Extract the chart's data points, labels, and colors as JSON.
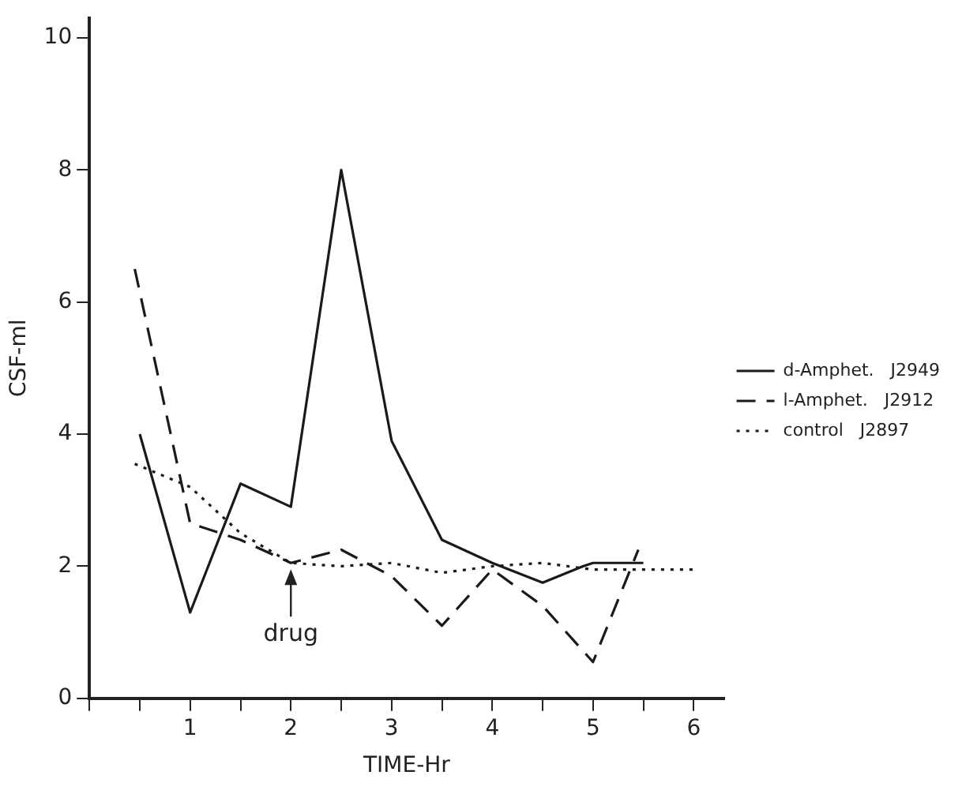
{
  "chart_data": {
    "type": "line",
    "xlabel": "TIME-Hr",
    "ylabel": "CSF-ml",
    "xlim": [
      0,
      6.3
    ],
    "xticks": [
      {
        "value": 0,
        "label": null
      },
      {
        "value": 0.5,
        "label": null
      },
      1,
      {
        "value": 1.5,
        "label": null
      },
      2,
      {
        "value": 2.5,
        "label": null
      },
      3,
      {
        "value": 3.5,
        "label": null
      },
      4,
      {
        "value": 4.5,
        "label": null
      },
      5,
      {
        "value": 5.5,
        "label": null
      },
      6
    ],
    "ylim": [
      0,
      10.3
    ],
    "yticks": [
      0,
      2,
      4,
      6,
      8,
      10
    ],
    "grid": false,
    "legend": "right",
    "marker": "none",
    "annotations": [
      {
        "text": "drug",
        "x": 2,
        "y": 2.05
      }
    ],
    "series": [
      {
        "name": "d-Amphet.   J2949",
        "color": "#1a1a1a",
        "line_style": "solid",
        "x": [
          0.5,
          1,
          1.5,
          2,
          2.5,
          3,
          3.5,
          4,
          4.5,
          4.9,
          5,
          5.5
        ],
        "values": [
          4.0,
          1.3,
          3.25,
          2.9,
          8.0,
          3.9,
          2.4,
          2.05,
          1.75,
          2.0,
          2.05,
          2.05
        ]
      },
      {
        "name": "l-Amphet.   J2912",
        "color": "#1a1a1a",
        "line_style": "dashed",
        "x": [
          0.45,
          1,
          1.5,
          2,
          2.5,
          3,
          3.5,
          4,
          4.5,
          5,
          5.45
        ],
        "values": [
          6.5,
          2.65,
          2.4,
          2.05,
          2.25,
          1.85,
          1.1,
          1.95,
          1.4,
          0.55,
          2.25
        ]
      },
      {
        "name": "control   J2897",
        "color": "#1a1a1a",
        "line_style": "dotted",
        "x": [
          0.45,
          1,
          1.5,
          2,
          2.5,
          3,
          3.5,
          4,
          4.5,
          5,
          6
        ],
        "values": [
          3.55,
          3.2,
          2.5,
          2.05,
          2.0,
          2.05,
          1.9,
          2.0,
          2.05,
          1.95,
          1.95
        ]
      }
    ]
  }
}
